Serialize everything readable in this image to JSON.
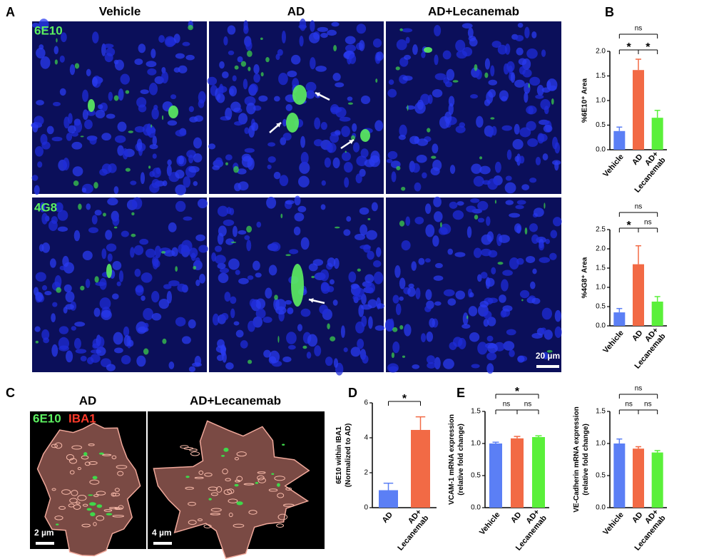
{
  "panel_labels": [
    "A",
    "B",
    "C",
    "D",
    "E"
  ],
  "panel_a": {
    "columns": [
      "Vehicle",
      "AD",
      "AD+Lecanemab"
    ],
    "rows": [
      "6E10",
      "4G8"
    ],
    "scale_bar": "20 µm"
  },
  "panel_c": {
    "columns": [
      "AD",
      "AD+Lecanemab"
    ],
    "stains": [
      "6E10",
      "IBA1"
    ],
    "scale_bars": [
      "2 µm",
      "4 µm"
    ]
  },
  "chart_data": [
    {
      "type": "bar",
      "ylabel": [
        "%6E10⁺ Area"
      ],
      "categories": [
        "Vehicle",
        "AD",
        "AD+ Lecanemab"
      ],
      "values": [
        0.38,
        1.62,
        0.65
      ],
      "errors": [
        0.08,
        0.22,
        0.15
      ],
      "colors": [
        "#5b7ff5",
        "#f26a45",
        "#5af03a"
      ],
      "ylim": [
        0,
        2
      ],
      "yticks": [
        {
          "value": 0,
          "label": "0.0"
        },
        0.5,
        {
          "value": 1,
          "label": "1.0"
        },
        1.5,
        {
          "value": 2,
          "label": "2.0"
        }
      ],
      "comparisons": [
        {
          "text": "*",
          "between": [
            "Vehicle",
            "AD"
          ]
        },
        {
          "text": "*",
          "between": [
            "AD",
            "AD+ Lecanemab"
          ]
        },
        {
          "text": "ns",
          "between": [
            "Vehicle",
            "AD+ Lecanemab"
          ]
        }
      ]
    },
    {
      "type": "bar",
      "ylabel": [
        "%4G8⁺ Area"
      ],
      "categories": [
        "Vehicle",
        "AD",
        "AD+ Lecanemab"
      ],
      "values": [
        0.35,
        1.6,
        0.63
      ],
      "errors": [
        0.1,
        0.48,
        0.13
      ],
      "colors": [
        "#5b7ff5",
        "#f26a45",
        "#5af03a"
      ],
      "ylim": [
        0,
        2.5
      ],
      "yticks": [
        {
          "value": 0,
          "label": "0.0"
        },
        0.5,
        {
          "value": 1,
          "label": "1.0"
        },
        1.5,
        {
          "value": 2,
          "label": "2.0"
        },
        2.5
      ],
      "comparisons": [
        {
          "text": "*",
          "between": [
            "Vehicle",
            "AD"
          ]
        },
        {
          "text": "ns",
          "between": [
            "AD",
            "AD+ Lecanemab"
          ]
        },
        {
          "text": "ns",
          "between": [
            "Vehicle",
            "AD+ Lecanemab"
          ]
        }
      ]
    },
    {
      "type": "bar",
      "ylabel": [
        "6E10 within IBA1",
        "(Normalized to AD)"
      ],
      "categories": [
        "AD",
        "AD+ Lecanemab"
      ],
      "values": [
        1.0,
        4.45
      ],
      "errors": [
        0.4,
        0.75
      ],
      "colors": [
        "#5b7ff5",
        "#f26a45"
      ],
      "ylim": [
        0,
        6
      ],
      "yticks": [
        0,
        2,
        4,
        6
      ],
      "comparisons": [
        {
          "text": "*",
          "between": [
            "AD",
            "AD+ Lecanemab"
          ]
        }
      ]
    },
    {
      "type": "bar",
      "ylabel": [
        "VCAM-1 mRNA expression",
        "(relative fold change)"
      ],
      "categories": [
        "Vehicle",
        "AD",
        "AD+ Lecanemab"
      ],
      "values": [
        1.0,
        1.08,
        1.1
      ],
      "errors": [
        0.02,
        0.03,
        0.02
      ],
      "colors": [
        "#5b7ff5",
        "#f26a45",
        "#5af03a"
      ],
      "ylim": [
        0,
        1.5
      ],
      "yticks": [
        {
          "value": 0,
          "label": "0.0"
        },
        0.5,
        {
          "value": 1,
          "label": "1.0"
        },
        1.5
      ],
      "comparisons": [
        {
          "text": "ns",
          "between": [
            "Vehicle",
            "AD"
          ]
        },
        {
          "text": "ns",
          "between": [
            "AD",
            "AD+ Lecanemab"
          ]
        },
        {
          "text": "*",
          "between": [
            "Vehicle",
            "AD+ Lecanemab"
          ]
        }
      ]
    },
    {
      "type": "bar",
      "ylabel": [
        "VE-Cadherin mRNA expression",
        "(relative fold change)"
      ],
      "categories": [
        "Vehicle",
        "AD",
        "AD+ Lecanemab"
      ],
      "values": [
        1.0,
        0.92,
        0.86
      ],
      "errors": [
        0.07,
        0.03,
        0.03
      ],
      "colors": [
        "#5b7ff5",
        "#f26a45",
        "#5af03a"
      ],
      "ylim": [
        0,
        1.5
      ],
      "yticks": [
        {
          "value": 0,
          "label": "0.0"
        },
        0.5,
        {
          "value": 1,
          "label": "1.0"
        },
        1.5
      ],
      "comparisons": [
        {
          "text": "ns",
          "between": [
            "Vehicle",
            "AD"
          ]
        },
        {
          "text": "ns",
          "between": [
            "AD",
            "AD+ Lecanemab"
          ]
        },
        {
          "text": "ns",
          "between": [
            "Vehicle",
            "AD+ Lecanemab"
          ]
        }
      ]
    }
  ]
}
